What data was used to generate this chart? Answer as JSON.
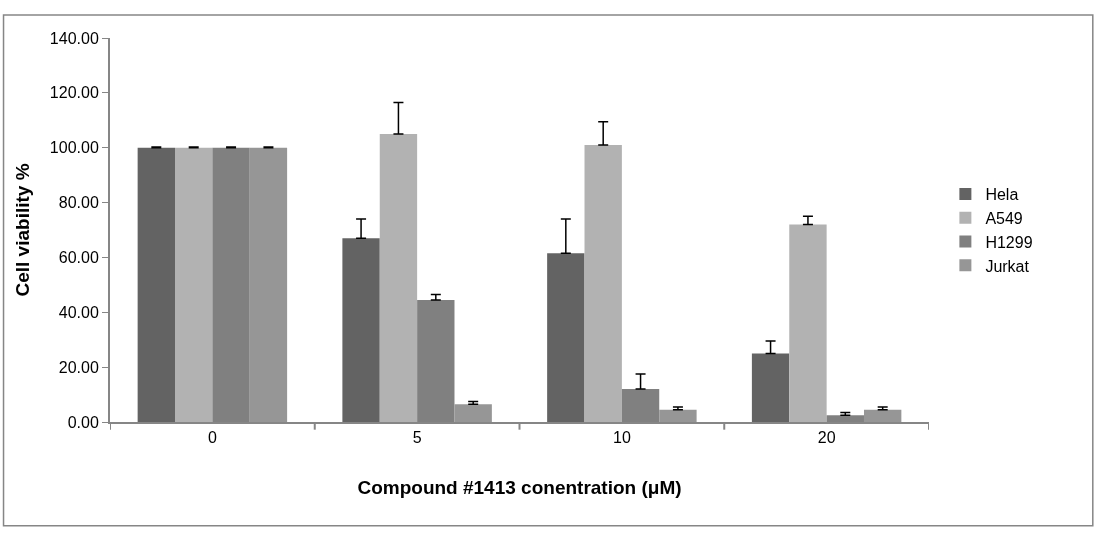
{
  "chart_data": {
    "type": "bar",
    "xlabel": "Compound #1413 conentration (μM)",
    "ylabel": "Cell viability %",
    "categories": [
      "0",
      "5",
      "10",
      "20"
    ],
    "series": [
      {
        "name": "Hela",
        "color": "#636363",
        "values": [
          100,
          67,
          61.5,
          25
        ],
        "errors": [
          [
            100,
            100.3
          ],
          [
            67,
            74
          ],
          [
            61.5,
            74
          ],
          [
            25,
            29.5
          ]
        ]
      },
      {
        "name": "A549",
        "color": "#b2b2b2",
        "values": [
          100,
          105,
          101,
          72
        ],
        "errors": [
          [
            100,
            100.3
          ],
          [
            105,
            116.5
          ],
          [
            101,
            109.5
          ],
          [
            72,
            75
          ]
        ]
      },
      {
        "name": "H1299",
        "color": "#808080",
        "values": [
          100,
          44.5,
          12,
          2.5
        ],
        "errors": [
          [
            100,
            100.3
          ],
          [
            44.5,
            46.5
          ],
          [
            12,
            17.5
          ],
          [
            2.5,
            3.5
          ]
        ]
      },
      {
        "name": "Jurkat",
        "color": "#969696",
        "values": [
          100,
          6.5,
          4.5,
          4.5
        ],
        "errors": [
          [
            100,
            100.3
          ],
          [
            6.5,
            7.5
          ],
          [
            4.5,
            5.5
          ],
          [
            4.5,
            5.5
          ]
        ]
      }
    ],
    "ylim": [
      0,
      140
    ],
    "yticks": [
      {
        "value": 0,
        "label": "0.00"
      },
      {
        "value": 20,
        "label": "20.00"
      },
      {
        "value": 40,
        "label": "40.00"
      },
      {
        "value": 60,
        "label": "60.00"
      },
      {
        "value": 80,
        "label": "80.00"
      },
      {
        "value": 100,
        "label": "100.00"
      },
      {
        "value": 120,
        "label": "120.00"
      },
      {
        "value": 140,
        "label": "140.00"
      }
    ],
    "grid": false,
    "legend": "right"
  }
}
